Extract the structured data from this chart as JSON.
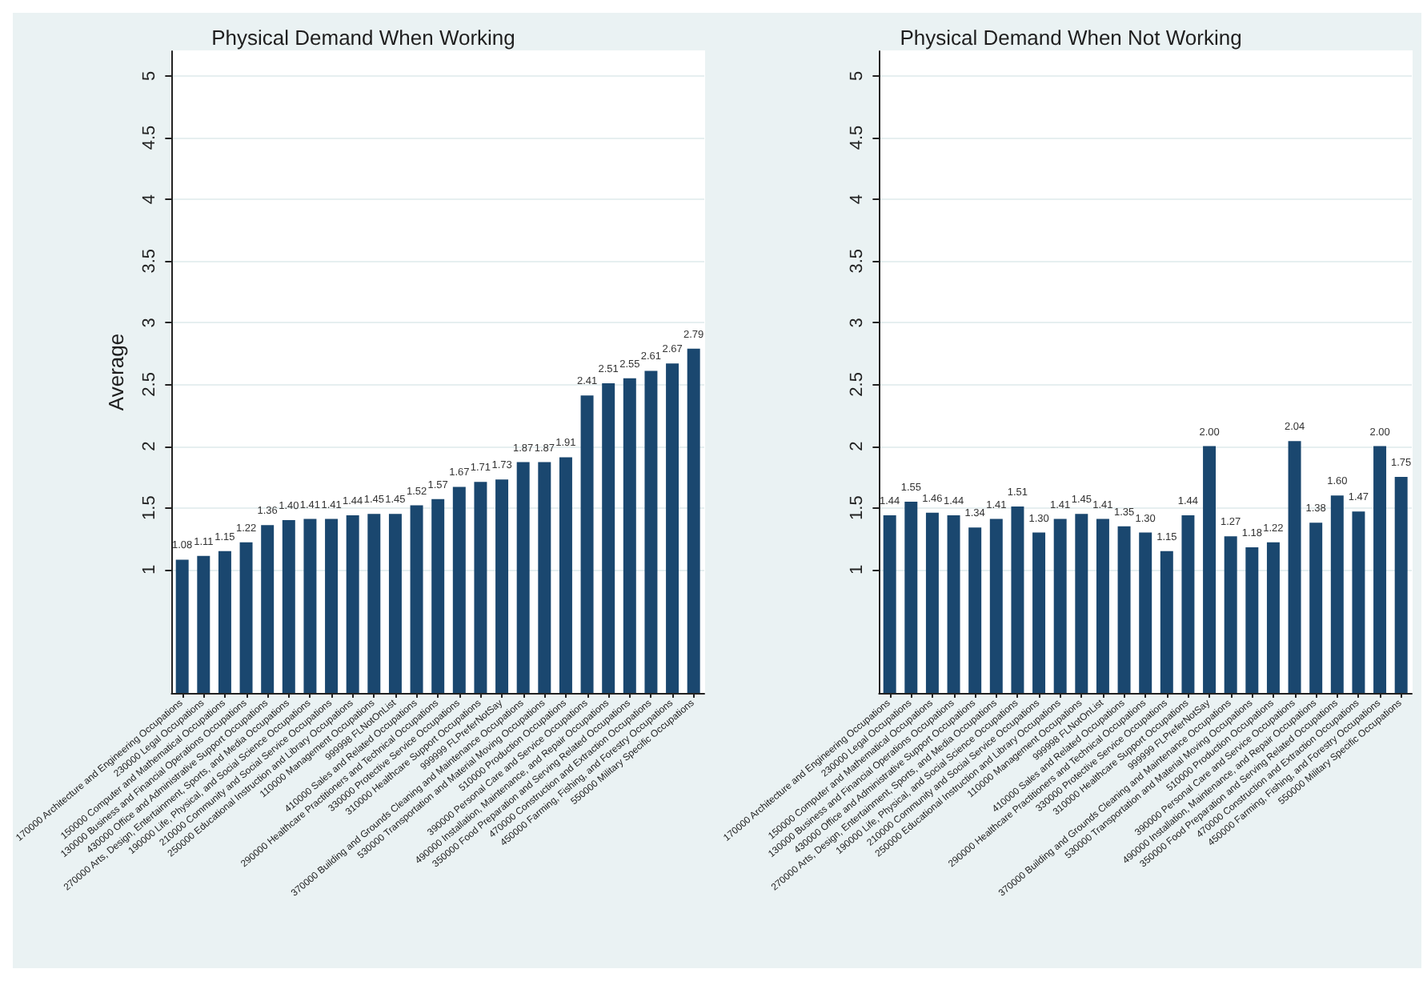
{
  "chart_data": [
    {
      "type": "bar",
      "title": "Physical Demand When Working",
      "ylabel": "Average",
      "color": "#1a476f",
      "ylim": [
        0,
        5.2
      ],
      "yticks": [
        1,
        1.5,
        2,
        2.5,
        3,
        3.5,
        4,
        4.5,
        5
      ],
      "grid": "y",
      "categories": [
        "170000 Architecture and Engineering Occupations",
        "230000 Legal Occupations",
        "150000 Computer and Mathematical Occupations",
        "130000 Business and Financial Operations Occupations",
        "430000 Office and Administrative Support Occupations",
        "270000 Arts, Design, Entertainment, Sports, and Media Occupations",
        "190000 Life, Physical, and Social Science Occupations",
        "210000 Community and Social Service Occupations",
        "250000 Educational Instruction and Library Occupations",
        "110000 Management Occupations",
        "999998 FLNotOnList",
        "410000 Sales and Related Occupations",
        "290000 Healthcare Practitioners and Technical Occupations",
        "330000 Protective Service Occupations",
        "310000 Healthcare Support Occupations",
        "999999 FLPreferNotSay",
        "370000 Building and Grounds Cleaning and Maintenance Occupations",
        "530000 Transportation and Material Moving Occupations",
        "510000 Production Occupations",
        "390000 Personal Care and Service Occupations",
        "490000 Installation, Maintenance, and Repair Occupations",
        "350000 Food Preparation and Serving Related Occupations",
        "470000 Construction and Extraction Occupations",
        "450000 Farming, Fishing, and Forestry Occupations",
        "550000 Military Specific Occupations"
      ],
      "values": [
        1.08,
        1.11,
        1.15,
        1.22,
        1.36,
        1.4,
        1.41,
        1.41,
        1.44,
        1.45,
        1.45,
        1.52,
        1.57,
        1.67,
        1.71,
        1.73,
        1.87,
        1.87,
        1.91,
        2.41,
        2.51,
        2.55,
        2.61,
        2.67,
        2.79
      ],
      "value_labels": [
        "1.08",
        "1.11",
        "1.15",
        "1.22",
        "1.36",
        "1.40",
        "1.41",
        "1.41",
        "1.44",
        "1.45",
        "1.45",
        "1.52",
        "1.57",
        "1.67",
        "1.71",
        "1.73",
        "1.87",
        "1.87",
        "1.91",
        "2.41",
        "2.51",
        "2.55",
        "2.61",
        "2.67",
        "2.79"
      ]
    },
    {
      "type": "bar",
      "title": "Physical Demand When Not Working",
      "color": "#1a476f",
      "ylim": [
        0,
        5.2
      ],
      "yticks": [
        1,
        1.5,
        2,
        2.5,
        3,
        3.5,
        4,
        4.5,
        5
      ],
      "grid": "y",
      "categories": [
        "170000 Architecture and Engineering Occupations",
        "230000 Legal Occupations",
        "150000 Computer and Mathematical Occupations",
        "130000 Business and Financial Operations Occupations",
        "430000 Office and Administrative Support Occupations",
        "270000 Arts, Design, Entertainment, Sports, and Media Occupations",
        "190000 Life, Physical, and Social Science Occupations",
        "210000 Community and Social Service Occupations",
        "250000 Educational Instruction and Library Occupations",
        "110000 Management Occupations",
        "999998 FLNotOnList",
        "410000 Sales and Related Occupations",
        "290000 Healthcare Practitioners and Technical Occupations",
        "330000 Protective Service Occupations",
        "310000 Healthcare Support Occupations",
        "999999 FLPreferNotSay",
        "370000 Building and Grounds Cleaning and Maintenance Occupations",
        "530000 Transportation and Material Moving Occupations",
        "510000 Production Occupations",
        "390000 Personal Care and Service Occupations",
        "490000 Installation, Maintenance, and Repair Occupations",
        "350000 Food Preparation and Serving Related Occupations",
        "470000 Construction and Extraction Occupations",
        "450000 Farming, Fishing, and Forestry Occupations",
        "550000 Military Specific Occupations"
      ],
      "values": [
        1.44,
        1.55,
        1.46,
        1.44,
        1.34,
        1.41,
        1.51,
        1.3,
        1.41,
        1.45,
        1.41,
        1.35,
        1.3,
        1.15,
        1.44,
        2.0,
        1.27,
        1.18,
        1.22,
        2.04,
        1.38,
        1.6,
        1.47,
        2.0,
        1.75
      ],
      "value_labels": [
        "1.44",
        "1.55",
        "1.46",
        "1.44",
        "1.34",
        "1.41",
        "1.51",
        "1.30",
        "1.41",
        "1.45",
        "1.41",
        "1.35",
        "1.30",
        "1.15",
        "1.44",
        "2.00",
        "1.27",
        "1.18",
        "1.22",
        "2.04",
        "1.38",
        "1.60",
        "1.47",
        "2.00",
        "1.75"
      ]
    }
  ]
}
